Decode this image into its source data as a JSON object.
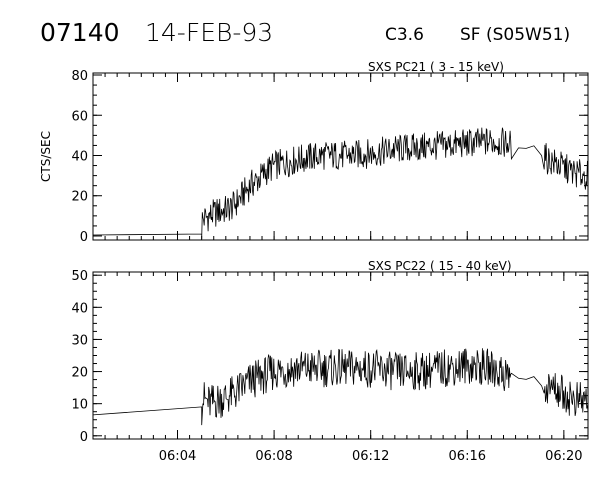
{
  "header": {
    "event_id": "07140",
    "date": "14-FEB-93",
    "flare_class": "C3.6",
    "location": "SF (S05W51)"
  },
  "colors": {
    "background": "#ffffff",
    "foreground": "#000000"
  },
  "chart_data": [
    {
      "type": "line",
      "title": "SXS PC21  (  3 - 15 keV)",
      "ylabel": "CTS/SEC",
      "xlabel": "",
      "ylim": [
        -2,
        81
      ],
      "xlim": [
        "06:00:30",
        "06:21:00"
      ],
      "yticks": [
        "0",
        "20",
        "40",
        "60",
        "80"
      ],
      "xticks": [
        "06:04",
        "06:08",
        "06:12",
        "06:16",
        "06:20"
      ],
      "x_tick_labels_visible": false,
      "series": [
        {
          "values": [
            {
              "t": "06:00:30",
              "y": 0.5
            },
            {
              "t": "06:05:00",
              "y": 1
            },
            {
              "t": "06:05:00",
              "y": 8
            },
            {
              "t": "06:05:20",
              "y": 10
            },
            {
              "t": "06:05:40",
              "y": 12
            },
            {
              "t": "06:06:00",
              "y": 13
            },
            {
              "t": "06:06:20",
              "y": 15
            },
            {
              "t": "06:06:40",
              "y": 20
            },
            {
              "t": "06:07:00",
              "y": 25
            },
            {
              "t": "06:07:20",
              "y": 28
            },
            {
              "t": "06:07:40",
              "y": 32
            },
            {
              "t": "06:08:00",
              "y": 35
            },
            {
              "t": "06:09:00",
              "y": 38
            },
            {
              "t": "06:10:00",
              "y": 40
            },
            {
              "t": "06:11:00",
              "y": 40
            },
            {
              "t": "06:12:00",
              "y": 41
            },
            {
              "t": "06:13:00",
              "y": 43
            },
            {
              "t": "06:14:00",
              "y": 44
            },
            {
              "t": "06:15:00",
              "y": 45
            },
            {
              "t": "06:16:00",
              "y": 46
            },
            {
              "t": "06:17:00",
              "y": 47
            },
            {
              "t": "06:17:40",
              "y": 46
            },
            {
              "t": "06:18:00",
              "y": 45
            },
            {
              "t": "06:18:20",
              "y": 42
            },
            {
              "t": "06:18:40",
              "y": 46
            },
            {
              "t": "06:19:00",
              "y": 41
            },
            {
              "t": "06:19:20",
              "y": 38
            },
            {
              "t": "06:19:40",
              "y": 36
            },
            {
              "t": "06:20:00",
              "y": 34
            },
            {
              "t": "06:20:30",
              "y": 31
            },
            {
              "t": "06:21:00",
              "y": 30
            }
          ]
        }
      ]
    },
    {
      "type": "line",
      "title": "SXS PC22  ( 15 - 40 keV)",
      "ylabel": "",
      "xlabel": "",
      "ylim": [
        -1,
        51
      ],
      "xlim": [
        "06:00:30",
        "06:21:00"
      ],
      "yticks": [
        "0",
        "10",
        "20",
        "30",
        "40",
        "50"
      ],
      "xticks": [
        "06:04",
        "06:08",
        "06:12",
        "06:16",
        "06:20"
      ],
      "x_tick_labels_visible": true,
      "series": [
        {
          "values": [
            {
              "t": "06:00:30",
              "y": 6.5
            },
            {
              "t": "06:05:00",
              "y": 9
            },
            {
              "t": "06:05:00",
              "y": 12
            },
            {
              "t": "06:05:20",
              "y": 10
            },
            {
              "t": "06:05:40",
              "y": 11
            },
            {
              "t": "06:06:00",
              "y": 12
            },
            {
              "t": "06:06:20",
              "y": 13
            },
            {
              "t": "06:06:40",
              "y": 15
            },
            {
              "t": "06:07:00",
              "y": 17
            },
            {
              "t": "06:07:20",
              "y": 18
            },
            {
              "t": "06:07:40",
              "y": 19
            },
            {
              "t": "06:08:00",
              "y": 20
            },
            {
              "t": "06:09:00",
              "y": 21
            },
            {
              "t": "06:10:00",
              "y": 21
            },
            {
              "t": "06:11:00",
              "y": 21
            },
            {
              "t": "06:12:00",
              "y": 21
            },
            {
              "t": "06:13:00",
              "y": 20
            },
            {
              "t": "06:14:00",
              "y": 20
            },
            {
              "t": "06:15:00",
              "y": 21
            },
            {
              "t": "06:16:00",
              "y": 22
            },
            {
              "t": "06:17:00",
              "y": 21
            },
            {
              "t": "06:17:40",
              "y": 19
            },
            {
              "t": "06:18:00",
              "y": 18
            },
            {
              "t": "06:18:20",
              "y": 17
            },
            {
              "t": "06:18:40",
              "y": 19
            },
            {
              "t": "06:19:00",
              "y": 16
            },
            {
              "t": "06:19:20",
              "y": 15
            },
            {
              "t": "06:19:40",
              "y": 15
            },
            {
              "t": "06:20:00",
              "y": 13
            },
            {
              "t": "06:20:30",
              "y": 11
            },
            {
              "t": "06:21:00",
              "y": 11
            }
          ]
        }
      ]
    }
  ]
}
